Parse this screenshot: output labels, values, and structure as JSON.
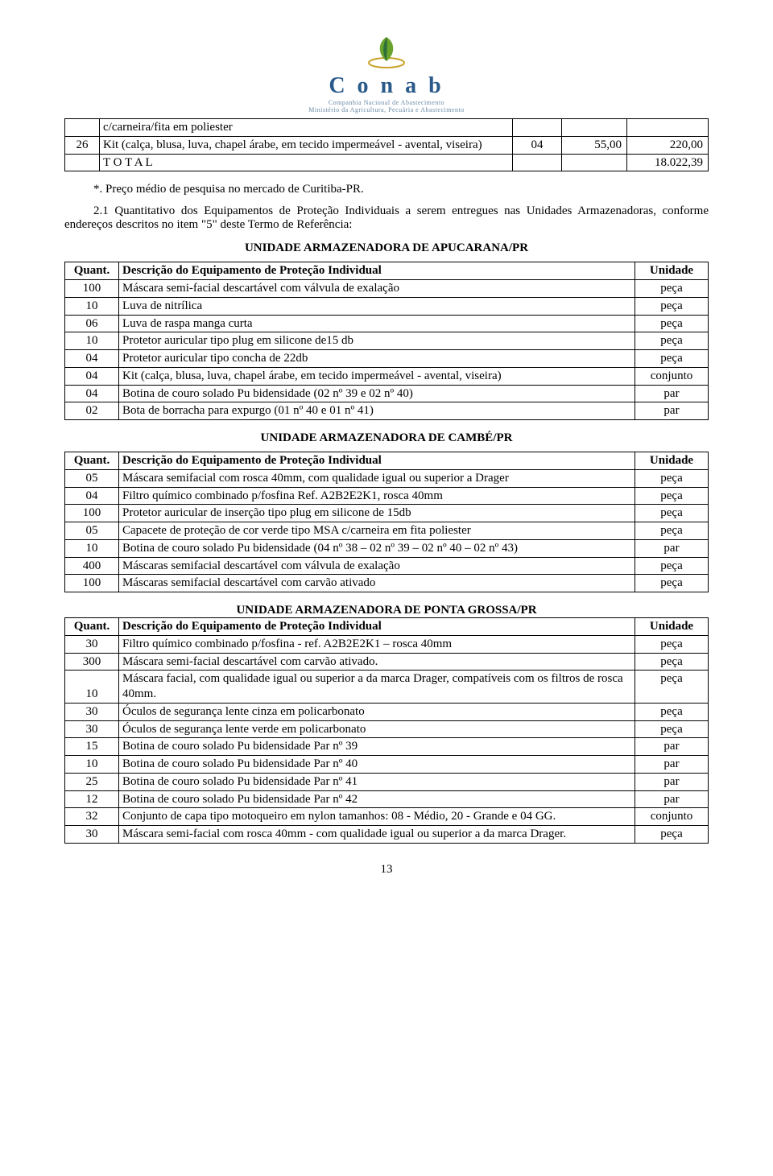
{
  "logo": {
    "brand": "C o n a b",
    "subtitle1": "Companhia Nacional de Abastecimento",
    "subtitle2": "Ministério da Agricultura, Pecuária e Abastecimento",
    "colors": {
      "leaf_green": "#6aa32c",
      "leaf_dark": "#2e6f3a",
      "ring": "#c9a227",
      "text": "#2a5a8a"
    }
  },
  "topTable": {
    "rows": [
      {
        "n": "",
        "desc": "c/carneira/fita em poliester",
        "c3": "",
        "c4": "",
        "c5": ""
      },
      {
        "n": "26",
        "desc": "Kit (calça, blusa, luva, chapel árabe, em tecido impermeável - avental, viseira)",
        "c3": "04",
        "c4": "55,00",
        "c5": "220,00"
      },
      {
        "n": "",
        "desc": "T O T A L",
        "c3": "",
        "c4": "",
        "c5": "18.022,39"
      }
    ]
  },
  "note": "*. Preço médio de pesquisa no mercado de Curitiba-PR.",
  "intro": "2.1 Quantitativo dos Equipamentos de Proteção Individuais a serem entregues nas Unidades Armazenadoras, conforme endereços descritos no item \"5\" deste Termo de Referência:",
  "sections": [
    {
      "title": "UNIDADE ARMAZENADORA DE APUCARANA/PR",
      "header": {
        "q": "Quant.",
        "d": "Descrição do Equipamento de Proteção Individual",
        "u": "Unidade"
      },
      "rows": [
        {
          "q": "100",
          "d": "Máscara semi-facial descartável com válvula de exalação",
          "u": "peça"
        },
        {
          "q": "10",
          "d": "Luva de nitrílica",
          "u": "peça"
        },
        {
          "q": "06",
          "d": "Luva de raspa manga curta",
          "u": "peça"
        },
        {
          "q": "10",
          "d": "Protetor auricular tipo plug em silicone de15 db",
          "u": "peça"
        },
        {
          "q": "04",
          "d": "Protetor auricular tipo concha de 22db",
          "u": "peça"
        },
        {
          "q": "04",
          "d": "Kit (calça, blusa, luva, chapel árabe, em tecido impermeável - avental, viseira)",
          "u": "conjunto"
        },
        {
          "q": "04",
          "d": "Botina de couro solado Pu bidensidade (02 nº 39 e 02 nº 40)",
          "u": "par"
        },
        {
          "q": "02",
          "d": "Bota de borracha para expurgo (01 nº 40 e 01 nº 41)",
          "u": "par"
        }
      ]
    },
    {
      "title": "UNIDADE ARMAZENADORA DE CAMBÉ/PR",
      "header": {
        "q": "Quant.",
        "d": "Descrição do Equipamento de Proteção Individual",
        "u": "Unidade"
      },
      "rows": [
        {
          "q": "05",
          "d": "Máscara semifacial com rosca 40mm, com qualidade igual ou superior a Drager",
          "u": "peça"
        },
        {
          "q": "04",
          "d": "Filtro químico combinado p/fosfina Ref. A2B2E2K1, rosca 40mm",
          "u": "peça"
        },
        {
          "q": "100",
          "d": "Protetor auricular de inserção tipo plug em silicone de 15db",
          "u": "peça"
        },
        {
          "q": "05",
          "d": "Capacete de proteção de cor verde tipo MSA c/carneira em fita poliester",
          "u": "peça"
        },
        {
          "q": "10",
          "d": "Botina de couro solado Pu bidensidade (04 nº 38 – 02 nº 39 – 02 nº 40 – 02 nº 43)",
          "u": "par"
        },
        {
          "q": "400",
          "d": "Máscaras semifacial descartável com válvula de exalação",
          "u": "peça"
        },
        {
          "q": "100",
          "d": "Máscaras semifacial descartável com carvão ativado",
          "u": "peça"
        }
      ]
    },
    {
      "title": "UNIDADE ARMAZENADORA DE PONTA GROSSA/PR",
      "header": {
        "q": "Quant.",
        "d": "Descrição do Equipamento de Proteção Individual",
        "u": "Unidade"
      },
      "rows": [
        {
          "q": "30",
          "d": "Filtro químico combinado p/fosfina - ref. A2B2E2K1 – rosca 40mm",
          "u": "peça"
        },
        {
          "q": "300",
          "d": "Máscara semi-facial descartável com carvão ativado.",
          "u": "peça"
        },
        {
          "q": "10",
          "d": "Máscara facial, com qualidade igual ou superior a da marca Drager, compatíveis com os filtros de rosca 40mm.",
          "u": "peça"
        },
        {
          "q": "30",
          "d": "Óculos de segurança lente cinza em policarbonato",
          "u": "peça"
        },
        {
          "q": "30",
          "d": "Óculos de segurança lente verde em policarbonato",
          "u": "peça"
        },
        {
          "q": "15",
          "d": "Botina de couro solado Pu bidensidade Par nº 39",
          "u": "par"
        },
        {
          "q": "10",
          "d": "Botina de couro solado Pu bidensidade Par nº 40",
          "u": "par"
        },
        {
          "q": "25",
          "d": "Botina de couro solado Pu bidensidade Par nº 41",
          "u": "par"
        },
        {
          "q": "12",
          "d": "Botina de couro solado Pu bidensidade Par nº 42",
          "u": "par"
        },
        {
          "q": "32",
          "d": "Conjunto de capa tipo motoqueiro em nylon tamanhos: 08 - Médio, 20 - Grande  e 04 GG.",
          "u": "conjunto"
        },
        {
          "q": "30",
          "d": "Máscara semi-facial com rosca 40mm - com qualidade igual ou superior a da marca Drager.",
          "u": "peça"
        }
      ]
    }
  ],
  "pageNumber": "13"
}
